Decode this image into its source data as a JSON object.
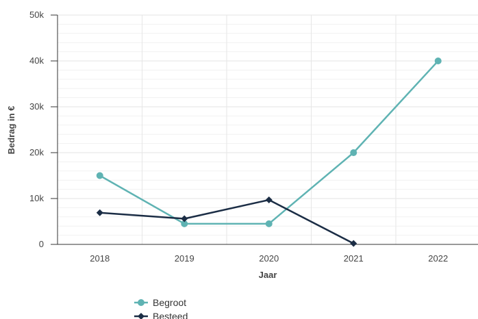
{
  "chart_data": {
    "type": "line",
    "categories": [
      "2018",
      "2019",
      "2020",
      "2021",
      "2022"
    ],
    "xlabel": "Jaar",
    "ylabel": "Bedrag in €",
    "ylim": [
      0,
      50000
    ],
    "y_ticks": [
      {
        "value": 0,
        "label": "0"
      },
      {
        "value": 10000,
        "label": "10k"
      },
      {
        "value": 20000,
        "label": "20k"
      },
      {
        "value": 30000,
        "label": "30k"
      },
      {
        "value": 40000,
        "label": "40k"
      },
      {
        "value": 50000,
        "label": "50k"
      }
    ],
    "series": [
      {
        "name": "Begroot",
        "color": "#5fb3b3",
        "marker": "circle",
        "values": [
          15000,
          4500,
          4500,
          20000,
          40000
        ]
      },
      {
        "name": "Besteed",
        "color": "#1b2d45",
        "marker": "diamond",
        "values": [
          6900,
          5600,
          9700,
          200,
          null
        ]
      }
    ],
    "grid": true,
    "legend_position": "bottom-left"
  }
}
